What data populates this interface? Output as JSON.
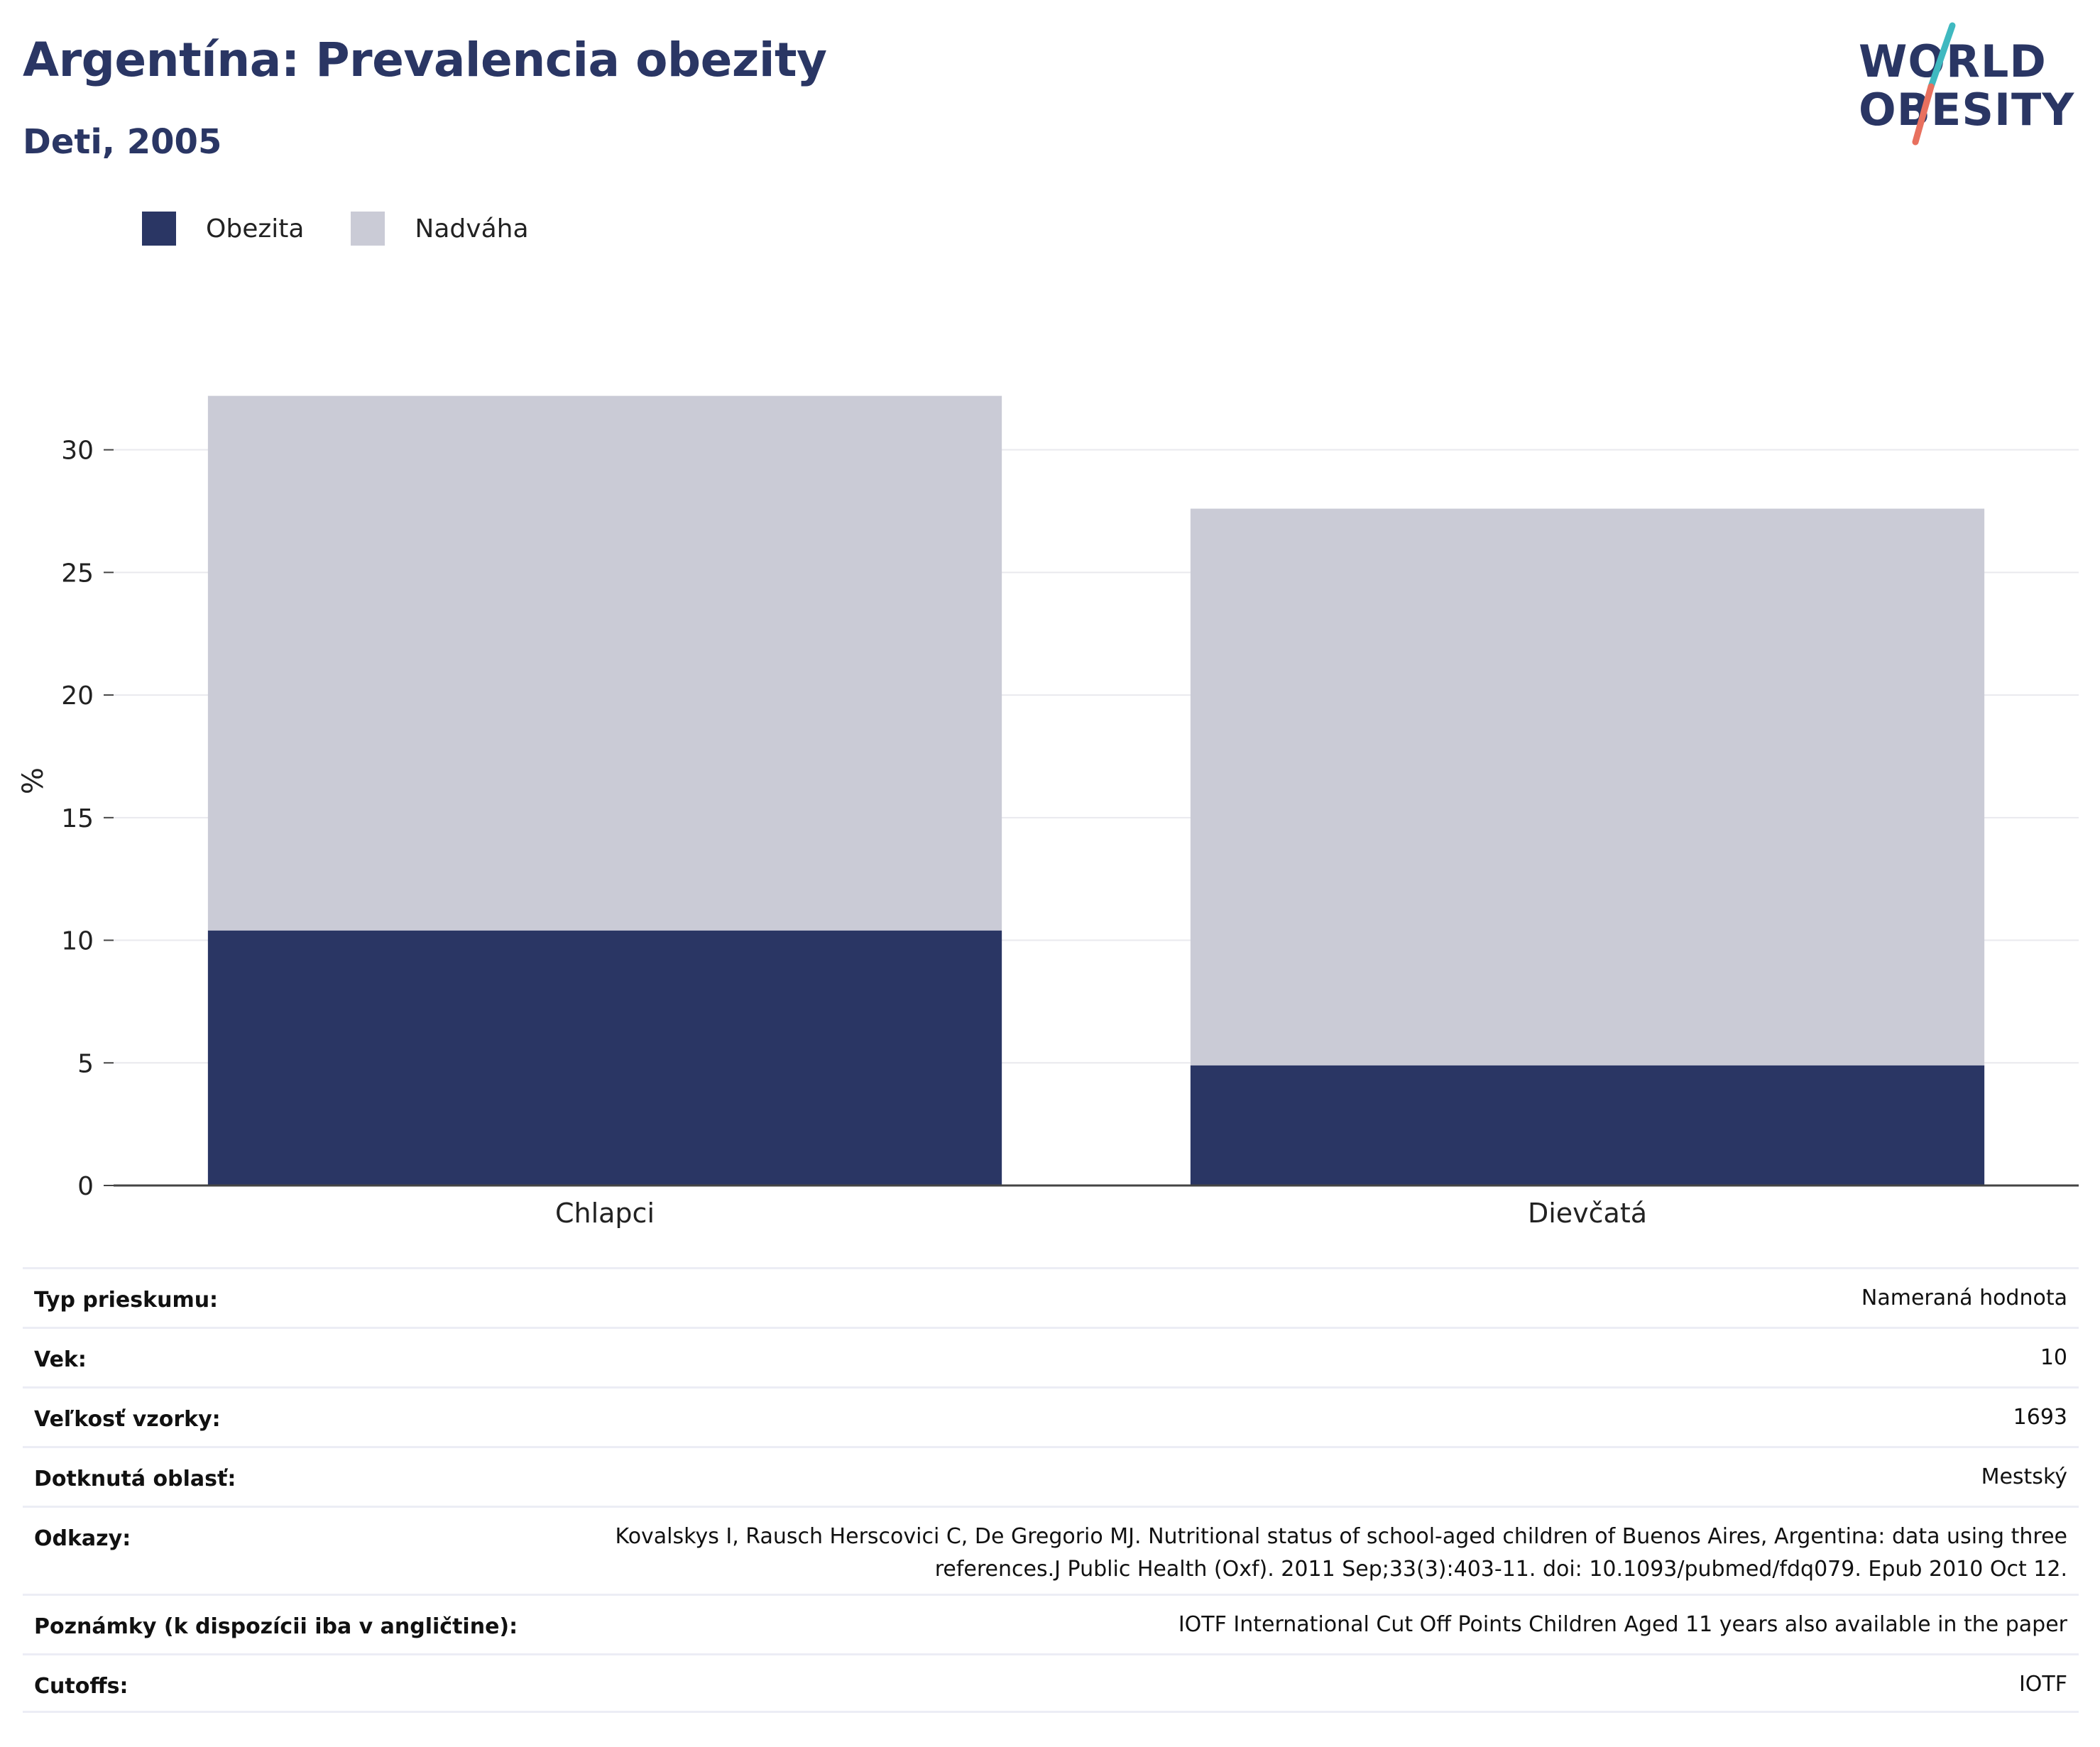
{
  "header": {
    "title": "Argentína: Prevalencia obezity",
    "subtitle": "Deti, 2005"
  },
  "logo": {
    "line1": "WORLD",
    "line2": "OBESITY"
  },
  "colors": {
    "obesity": "#2a3664",
    "overweight": "#cacbd6",
    "title": "#2a3664",
    "grid": "#e9e9ee",
    "accent_teal": "#3fb9c0",
    "accent_coral": "#e8705e"
  },
  "legend": [
    {
      "label": "Obezita",
      "color": "#2a3664"
    },
    {
      "label": "Nadváha",
      "color": "#cacbd6"
    }
  ],
  "chart_data": {
    "type": "bar",
    "stacked": true,
    "categories": [
      "Chlapci",
      "Dievčatá"
    ],
    "series": [
      {
        "name": "Obezita",
        "values": [
          10.4,
          4.9
        ]
      },
      {
        "name": "Nadváha",
        "values": [
          21.8,
          22.7
        ]
      }
    ],
    "ylabel": "%",
    "ylim": [
      0,
      33
    ],
    "yticks": [
      0,
      5,
      10,
      15,
      20,
      25,
      30
    ],
    "grid": true,
    "legend_position": "top-left"
  },
  "info": [
    {
      "label": "Typ prieskumu:",
      "value": "Nameraná hodnota"
    },
    {
      "label": "Vek:",
      "value": "10"
    },
    {
      "label": "Veľkosť vzorky:",
      "value": "1693"
    },
    {
      "label": "Dotknutá oblasť:",
      "value": "Mestský"
    },
    {
      "label": "Odkazy:",
      "value_lines": [
        "Kovalskys I, Rausch Herscovici C, De Gregorio MJ. Nutritional status of school-aged children of Buenos Aires, Argentina: data using three",
        "references.J Public Health (Oxf). 2011 Sep;33(3):403-11. doi: 10.1093/pubmed/fdq079. Epub 2010 Oct 12."
      ]
    },
    {
      "label": "Poznámky (k dispozícii iba v angličtine):",
      "value": "IOTF International Cut Off Points Children Aged 11 years also available in the paper"
    },
    {
      "label": "Cutoffs:",
      "value": "IOTF"
    }
  ]
}
